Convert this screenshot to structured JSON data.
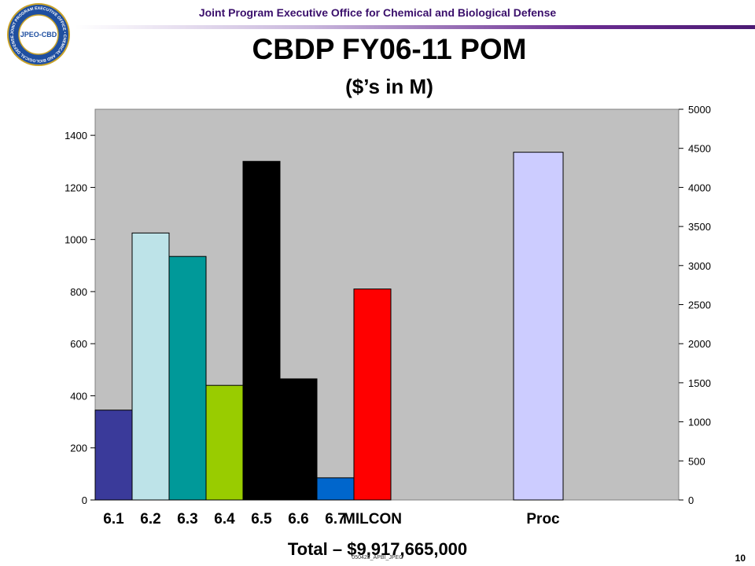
{
  "header": {
    "organization": "Joint Program Executive Office for Chemical and Biological Defense",
    "logo_text": "JPEO-CBD",
    "logo_ring_text": "JOINT PROGRAM EXECUTIVE OFFICE • CHEMICAL AND BIOLOGICAL DEFENSE •"
  },
  "slide": {
    "footnote": "Total – $9,917,665,000",
    "footer_id": "050425_APBI_JPEO",
    "page_number": "10"
  },
  "chart_data": {
    "type": "bar",
    "title": "CBDP FY06-11 POM",
    "subtitle": "($’s in M)",
    "primary_axis": {
      "ylim": [
        0,
        1500
      ],
      "ticks": [
        0,
        200,
        400,
        600,
        800,
        1000,
        1200,
        1400
      ]
    },
    "secondary_axis": {
      "ylim": [
        0,
        5000
      ],
      "ticks": [
        0,
        500,
        1000,
        1500,
        2000,
        2500,
        3000,
        3500,
        4000,
        4500,
        5000
      ]
    },
    "categories": [
      "6.1",
      "6.2",
      "6.3",
      "6.4",
      "6.5",
      "6.6",
      "6.7",
      "MILCON"
    ],
    "values": [
      345,
      1025,
      935,
      440,
      1300,
      465,
      85,
      810
    ],
    "colors": [
      "#3a3a9a",
      "#bde3e8",
      "#009999",
      "#99cc00",
      "#000000",
      "#000000",
      "#0066cc",
      "#ff0000"
    ],
    "secondary_series": {
      "categories": [
        "Proc"
      ],
      "values": [
        4450
      ],
      "colors": [
        "#ccccff"
      ]
    },
    "plot_background": "#c0c0c0",
    "grid": false,
    "legend": "none"
  }
}
